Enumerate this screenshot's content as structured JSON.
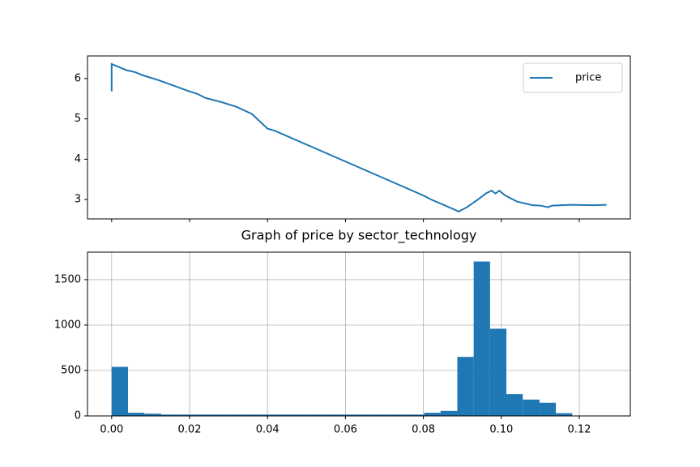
{
  "chart_data": [
    {
      "type": "line",
      "series": [
        {
          "name": "price",
          "color": "#1f77b4",
          "x": [
            0,
            0,
            0.004,
            0.006,
            0.008,
            0.012,
            0.016,
            0.02,
            0.022,
            0.024,
            0.028,
            0.032,
            0.036,
            0.04,
            0.042,
            0.08,
            0.082,
            0.088,
            0.089,
            0.091,
            0.094,
            0.096,
            0.0975,
            0.0985,
            0.0995,
            0.101,
            0.104,
            0.108,
            0.11,
            0.112,
            0.113,
            0.118,
            0.124,
            0.127
          ],
          "values": [
            5.68,
            6.36,
            6.2,
            6.16,
            6.08,
            5.96,
            5.82,
            5.68,
            5.62,
            5.52,
            5.42,
            5.3,
            5.12,
            4.76,
            4.7,
            3.1,
            3.0,
            2.75,
            2.7,
            2.8,
            3.0,
            3.15,
            3.22,
            3.15,
            3.22,
            3.1,
            2.95,
            2.86,
            2.85,
            2.81,
            2.85,
            2.87,
            2.86,
            2.87
          ]
        }
      ],
      "xlim": [
        -0.0062,
        0.1331
      ],
      "xticks": [
        0,
        0.02,
        0.04,
        0.06,
        0.08,
        0.1,
        0.12
      ],
      "show_xtick_labels": false,
      "ylim": [
        2.52,
        6.56
      ],
      "yticks": [
        3,
        4,
        5,
        6
      ],
      "grid": false,
      "legend": "upper right"
    },
    {
      "type": "histogram",
      "title": "Graph of price by sector_technology",
      "color": "#1f77b4",
      "bins": [
        0,
        0.0042,
        0.0084,
        0.0127,
        0.0169,
        0.0211,
        0.0253,
        0.0296,
        0.0338,
        0.038,
        0.0422,
        0.0464,
        0.0507,
        0.0549,
        0.0591,
        0.0633,
        0.0676,
        0.0718,
        0.076,
        0.0802,
        0.0844,
        0.0887,
        0.0929,
        0.0971,
        0.1013,
        0.1055,
        0.1098,
        0.114,
        0.1182,
        0.1224,
        0.1267
      ],
      "values": [
        540,
        35,
        25,
        15,
        15,
        15,
        15,
        15,
        15,
        15,
        15,
        15,
        15,
        15,
        15,
        15,
        15,
        15,
        15,
        35,
        55,
        650,
        1700,
        960,
        240,
        180,
        145,
        30,
        0,
        0
      ],
      "xlim": [
        -0.0062,
        0.1331
      ],
      "xticks": [
        {
          "value": 0,
          "label": "0.00"
        },
        {
          "value": 0.02,
          "label": "0.02"
        },
        {
          "value": 0.04,
          "label": "0.04"
        },
        {
          "value": 0.06,
          "label": "0.06"
        },
        {
          "value": 0.08,
          "label": "0.08"
        },
        {
          "value": 0.1,
          "label": "0.10"
        },
        {
          "value": 0.12,
          "label": "0.12"
        }
      ],
      "ylim": [
        0,
        1803
      ],
      "yticks": [
        0,
        500,
        1000,
        1500
      ],
      "grid": true
    }
  ]
}
